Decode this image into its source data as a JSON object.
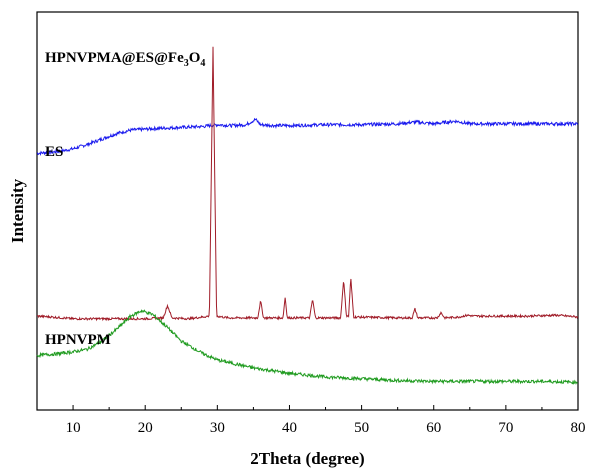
{
  "chart_data": {
    "type": "line",
    "title": "",
    "xlabel": "2Theta (degree)",
    "ylabel": "Intensity",
    "xlim": [
      5,
      80
    ],
    "xticks": [
      10,
      20,
      30,
      40,
      50,
      60,
      70,
      80
    ],
    "y_ticks_shown": false,
    "grid": false,
    "legend": "none",
    "series": [
      {
        "name": "HPNVPMA@ES@Fe3O4",
        "label_main": "HPNVPMA@ES@Fe",
        "label_sub": "3",
        "label_mid": "O",
        "label_sub2": "4",
        "color": "#1a1aee",
        "offset": 2.6,
        "x": [
          5,
          8,
          10,
          12,
          14,
          16,
          18,
          20,
          22,
          25,
          28,
          30,
          32,
          34,
          35.3,
          36,
          38,
          40,
          45,
          50,
          55,
          57.5,
          60,
          63,
          65,
          70,
          75,
          80
        ],
        "y": [
          0.02,
          0.04,
          0.07,
          0.12,
          0.18,
          0.24,
          0.28,
          0.29,
          0.3,
          0.31,
          0.32,
          0.34,
          0.33,
          0.34,
          0.4,
          0.34,
          0.33,
          0.33,
          0.34,
          0.34,
          0.35,
          0.37,
          0.35,
          0.38,
          0.35,
          0.35,
          0.35,
          0.35
        ]
      },
      {
        "name": "ES",
        "label_main": "ES",
        "color": "#a01c28",
        "offset": 0.75,
        "x": [
          5,
          7,
          10,
          15,
          20,
          22.5,
          23.1,
          23.7,
          26,
          28.9,
          29.4,
          29.9,
          31.5,
          35.6,
          36.0,
          36.4,
          39.1,
          39.4,
          39.7,
          42.8,
          43.2,
          43.6,
          47.1,
          47.5,
          47.9,
          48.2,
          48.5,
          48.9,
          55,
          57.0,
          57.4,
          57.8,
          60.5,
          61.0,
          61.5,
          63.5,
          64.7,
          65.5,
          70.0,
          73.0,
          77.0,
          80
        ],
        "y": [
          0.05,
          0.04,
          0.02,
          0.02,
          0.02,
          0.03,
          0.17,
          0.03,
          0.02,
          0.05,
          3.05,
          0.05,
          0.03,
          0.03,
          0.22,
          0.03,
          0.03,
          0.26,
          0.03,
          0.03,
          0.24,
          0.03,
          0.03,
          0.46,
          0.05,
          0.05,
          0.48,
          0.04,
          0.03,
          0.03,
          0.13,
          0.03,
          0.03,
          0.09,
          0.03,
          0.04,
          0.06,
          0.05,
          0.05,
          0.05,
          0.06,
          0.04
        ]
      },
      {
        "name": "HPNVPM",
        "label_main": "HPNVPM",
        "color": "#1f9b1f",
        "offset": 0.0,
        "x": [
          5,
          8,
          10,
          12,
          14,
          16,
          18,
          19.5,
          21,
          23,
          25,
          28,
          30,
          35,
          40,
          45,
          50,
          55,
          60,
          65,
          70,
          75,
          80
        ],
        "y": [
          0.36,
          0.38,
          0.4,
          0.43,
          0.52,
          0.65,
          0.8,
          0.86,
          0.82,
          0.68,
          0.52,
          0.38,
          0.31,
          0.22,
          0.16,
          0.12,
          0.1,
          0.08,
          0.07,
          0.07,
          0.07,
          0.07,
          0.06
        ]
      }
    ]
  }
}
